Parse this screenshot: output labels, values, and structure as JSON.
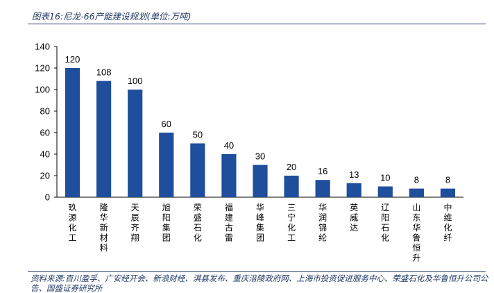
{
  "caption": "图表16:尼龙-66产能建设规划(单位:万吨)",
  "source": "资料来源:百川盈孚、广安经开会、新浪财经、淇县发布、重庆涪陵政府网、上海市投资促进服务中心、荣盛石化及华鲁恒升公司公告、国盛证券研究所",
  "colors": {
    "bar": "#1f4e9c",
    "rule": "#1f3864",
    "axis": "#000000"
  },
  "chart_data": {
    "type": "bar",
    "title": "",
    "xlabel": "",
    "ylabel": "",
    "categories": [
      "玖源化工",
      "隆华新材料",
      "天辰齐翔",
      "旭阳集团",
      "荣盛石化",
      "福建古雷",
      "华峰集团",
      "三宁化工",
      "华润锦纶",
      "英威达",
      "辽阳石化",
      "山东华鲁恒升",
      "中维化纤"
    ],
    "values": [
      120,
      108,
      100,
      60,
      50,
      40,
      30,
      20,
      16,
      13,
      10,
      8,
      8
    ],
    "ylim": [
      0,
      140
    ],
    "yticks": [
      0,
      20,
      40,
      60,
      80,
      100,
      120,
      140
    ],
    "grid": false,
    "legend": "none",
    "data_labels": true
  }
}
